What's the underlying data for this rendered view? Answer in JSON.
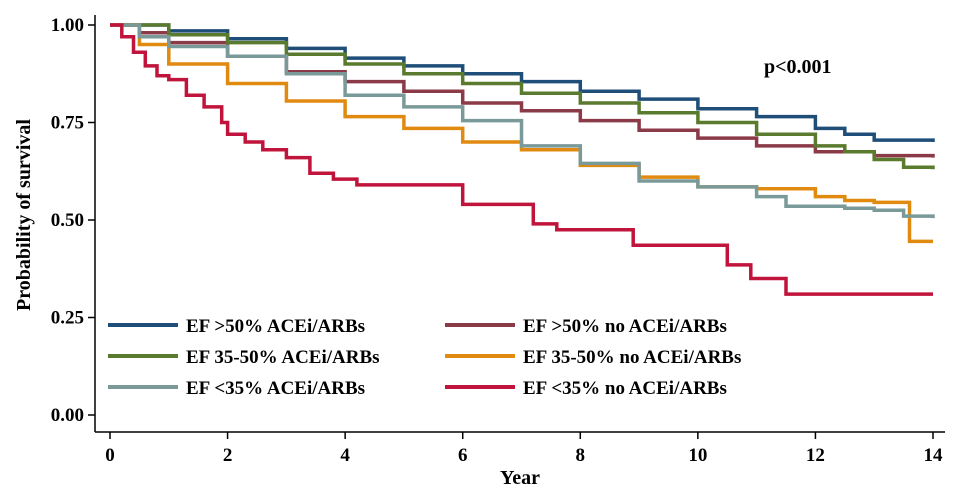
{
  "chart_data": {
    "type": "line",
    "step": true,
    "title": "",
    "xlabel": "Year",
    "ylabel": "Probability of survival",
    "xlim": [
      0,
      14
    ],
    "ylim": [
      0,
      1
    ],
    "x_ticks": [
      "0",
      "2",
      "4",
      "6",
      "8",
      "10",
      "12",
      "14"
    ],
    "y_ticks": [
      "0.00",
      "0.25",
      "0.50",
      "0.75",
      "1.00"
    ],
    "annotation": "p<0.001",
    "legend_position": "bottom-left inside",
    "series": [
      {
        "name": "EF >50% ACEi/ARBs",
        "color": "#1f4e79",
        "points": [
          [
            0,
            1.0
          ],
          [
            1,
            0.985
          ],
          [
            2,
            0.965
          ],
          [
            3,
            0.94
          ],
          [
            4,
            0.915
          ],
          [
            5,
            0.895
          ],
          [
            6,
            0.875
          ],
          [
            7,
            0.855
          ],
          [
            8,
            0.83
          ],
          [
            9,
            0.81
          ],
          [
            10,
            0.785
          ],
          [
            11,
            0.765
          ],
          [
            12,
            0.735
          ],
          [
            12.5,
            0.72
          ],
          [
            13,
            0.705
          ],
          [
            14,
            0.7
          ]
        ]
      },
      {
        "name": "EF >50% no ACEi/ARBs",
        "color": "#8b3a48",
        "points": [
          [
            0,
            1.0
          ],
          [
            0.5,
            0.98
          ],
          [
            1,
            0.955
          ],
          [
            2,
            0.92
          ],
          [
            3,
            0.88
          ],
          [
            4,
            0.855
          ],
          [
            5,
            0.83
          ],
          [
            6,
            0.8
          ],
          [
            7,
            0.78
          ],
          [
            8,
            0.755
          ],
          [
            9,
            0.73
          ],
          [
            10,
            0.71
          ],
          [
            11,
            0.69
          ],
          [
            12,
            0.675
          ],
          [
            13,
            0.665
          ],
          [
            14,
            0.66
          ]
        ]
      },
      {
        "name": "EF 35-50% ACEi/ARBs",
        "color": "#5a7a2e",
        "points": [
          [
            0,
            1.0
          ],
          [
            1,
            0.975
          ],
          [
            2,
            0.955
          ],
          [
            3,
            0.925
          ],
          [
            4,
            0.9
          ],
          [
            5,
            0.875
          ],
          [
            6,
            0.85
          ],
          [
            7,
            0.825
          ],
          [
            8,
            0.8
          ],
          [
            9,
            0.775
          ],
          [
            10,
            0.75
          ],
          [
            11,
            0.72
          ],
          [
            12,
            0.69
          ],
          [
            12.5,
            0.675
          ],
          [
            13,
            0.655
          ],
          [
            13.5,
            0.635
          ],
          [
            14,
            0.63
          ]
        ]
      },
      {
        "name": "EF 35-50% no ACEi/ARBs",
        "color": "#e08a10",
        "points": [
          [
            0,
            1.0
          ],
          [
            0.5,
            0.95
          ],
          [
            1,
            0.9
          ],
          [
            2,
            0.85
          ],
          [
            3,
            0.805
          ],
          [
            4,
            0.765
          ],
          [
            5,
            0.735
          ],
          [
            6,
            0.7
          ],
          [
            7,
            0.68
          ],
          [
            8,
            0.64
          ],
          [
            9,
            0.61
          ],
          [
            10,
            0.585
          ],
          [
            11,
            0.58
          ],
          [
            11.5,
            0.58
          ],
          [
            12,
            0.56
          ],
          [
            12.5,
            0.55
          ],
          [
            13,
            0.545
          ],
          [
            13.5,
            0.545
          ],
          [
            13.6,
            0.445
          ],
          [
            14,
            0.445
          ]
        ]
      },
      {
        "name": "EF <35% ACEi/ARBs",
        "color": "#7a9a9a",
        "points": [
          [
            0,
            1.0
          ],
          [
            0.5,
            0.97
          ],
          [
            1,
            0.945
          ],
          [
            2,
            0.92
          ],
          [
            3,
            0.875
          ],
          [
            4,
            0.82
          ],
          [
            5,
            0.79
          ],
          [
            6,
            0.755
          ],
          [
            7,
            0.69
          ],
          [
            8,
            0.645
          ],
          [
            9,
            0.6
          ],
          [
            10,
            0.585
          ],
          [
            11,
            0.56
          ],
          [
            11.5,
            0.535
          ],
          [
            12,
            0.535
          ],
          [
            12.5,
            0.53
          ],
          [
            13,
            0.525
          ],
          [
            13.5,
            0.51
          ],
          [
            14,
            0.505
          ]
        ]
      },
      {
        "name": "EF <35% no ACEi/ARBs",
        "color": "#c0143c",
        "points": [
          [
            0,
            1.0
          ],
          [
            0.2,
            0.97
          ],
          [
            0.4,
            0.93
          ],
          [
            0.6,
            0.895
          ],
          [
            0.8,
            0.87
          ],
          [
            1,
            0.86
          ],
          [
            1.3,
            0.82
          ],
          [
            1.6,
            0.79
          ],
          [
            1.9,
            0.75
          ],
          [
            2,
            0.72
          ],
          [
            2.3,
            0.7
          ],
          [
            2.6,
            0.68
          ],
          [
            3,
            0.66
          ],
          [
            3.4,
            0.62
          ],
          [
            3.8,
            0.605
          ],
          [
            4.2,
            0.59
          ],
          [
            6,
            0.54
          ],
          [
            7,
            0.54
          ],
          [
            7.2,
            0.49
          ],
          [
            7.6,
            0.475
          ],
          [
            8.9,
            0.435
          ],
          [
            10.5,
            0.385
          ],
          [
            10.9,
            0.35
          ],
          [
            11.5,
            0.31
          ],
          [
            14,
            0.31
          ]
        ]
      }
    ]
  }
}
